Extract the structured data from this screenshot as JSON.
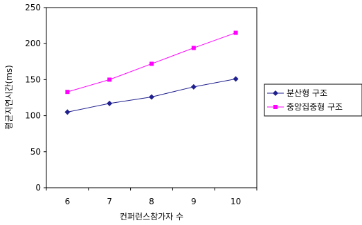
{
  "chart_data": {
    "type": "line",
    "title": "",
    "xlabel": "컨퍼런스참가자 수",
    "ylabel": "평균지연시간(ms)",
    "x": [
      6,
      7,
      8,
      9,
      10
    ],
    "ylim": [
      0,
      250
    ],
    "yticks": [
      0,
      50,
      100,
      150,
      200,
      250
    ],
    "grid": false,
    "legend_position": "right",
    "series": [
      {
        "name": "분산형 구조",
        "values": [
          105,
          117,
          126,
          140,
          151
        ],
        "color": "#1f1f8f",
        "marker": "diamond"
      },
      {
        "name": "중앙집중형 구조",
        "values": [
          133,
          150,
          172,
          194,
          215
        ],
        "color": "#ff00ff",
        "marker": "square"
      }
    ]
  }
}
